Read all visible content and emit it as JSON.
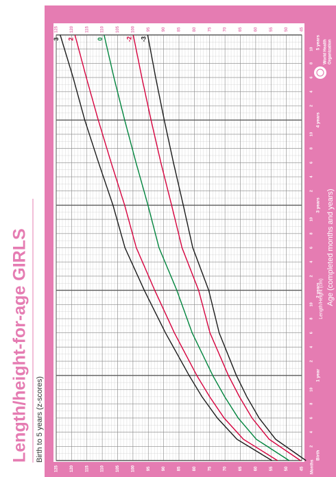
{
  "chart_data": {
    "type": "line",
    "title": "Length/height-for-age GIRLS",
    "subtitle": "Birth to 5 years (z-scores)",
    "xlabel": "Age (completed months and years)",
    "ylabel": "Length/Height (cm)",
    "months_label": "Months",
    "logo_text": [
      "World Health",
      "Organization"
    ],
    "x": [
      0,
      3,
      6,
      9,
      12,
      18,
      24,
      30,
      36,
      42,
      48,
      54,
      60
    ],
    "xlim": [
      0,
      60
    ],
    "xticks": [
      {
        "value": 0,
        "label": "Birth"
      },
      2,
      4,
      6,
      8,
      10,
      {
        "value": 12,
        "label": "1 year"
      },
      {
        "value": 14,
        "label": "2"
      },
      {
        "value": 16,
        "label": "4"
      },
      {
        "value": 18,
        "label": "6"
      },
      {
        "value": 20,
        "label": "8"
      },
      {
        "value": 22,
        "label": "10"
      },
      {
        "value": 24,
        "label": "2 years"
      },
      {
        "value": 26,
        "label": "2"
      },
      {
        "value": 28,
        "label": "4"
      },
      {
        "value": 30,
        "label": "6"
      },
      {
        "value": 32,
        "label": "8"
      },
      {
        "value": 34,
        "label": "10"
      },
      {
        "value": 36,
        "label": "3 years"
      },
      {
        "value": 38,
        "label": "2"
      },
      {
        "value": 40,
        "label": "4"
      },
      {
        "value": 42,
        "label": "6"
      },
      {
        "value": 44,
        "label": "8"
      },
      {
        "value": 46,
        "label": "10"
      },
      {
        "value": 48,
        "label": "4 years"
      },
      {
        "value": 50,
        "label": "2"
      },
      {
        "value": 52,
        "label": "4"
      },
      {
        "value": 54,
        "label": "6"
      },
      {
        "value": 56,
        "label": "8"
      },
      {
        "value": 58,
        "label": "10"
      },
      {
        "value": 60,
        "label": "5 years"
      }
    ],
    "ylim": [
      45,
      125
    ],
    "yticks": [
      45,
      50,
      55,
      60,
      65,
      70,
      75,
      80,
      85,
      90,
      95,
      100,
      105,
      110,
      115,
      120,
      125
    ],
    "grid": true,
    "series": [
      {
        "name": "3",
        "color": "#1a1a1a",
        "values": [
          54.7,
          66.1,
          72.5,
          77.5,
          81.7,
          89.4,
          96.3,
          102.6,
          106.5,
          111.2,
          115.7,
          119.5,
          123.7
        ]
      },
      {
        "name": "2",
        "color": "#d6003d",
        "values": [
          52.9,
          64.0,
          70.3,
          75.0,
          79.2,
          86.5,
          92.9,
          98.9,
          102.7,
          107.1,
          111.3,
          115.2,
          118.9
        ]
      },
      {
        "name": "0",
        "color": "#00843d",
        "values": [
          49.1,
          59.8,
          65.7,
          70.1,
          74.0,
          80.7,
          85.7,
          91.5,
          95.1,
          99.0,
          102.7,
          106.2,
          109.4
        ]
      },
      {
        "name": "-2",
        "color": "#d6003d",
        "values": [
          45.4,
          55.6,
          61.2,
          65.3,
          68.9,
          74.9,
          78.6,
          84.0,
          87.4,
          90.9,
          94.1,
          97.1,
          99.9
        ]
      },
      {
        "name": "-3",
        "color": "#1a1a1a",
        "values": [
          43.6,
          53.5,
          58.9,
          62.9,
          66.3,
          71.9,
          75.3,
          80.5,
          83.6,
          86.8,
          89.8,
          92.6,
          95.2
        ]
      }
    ]
  }
}
